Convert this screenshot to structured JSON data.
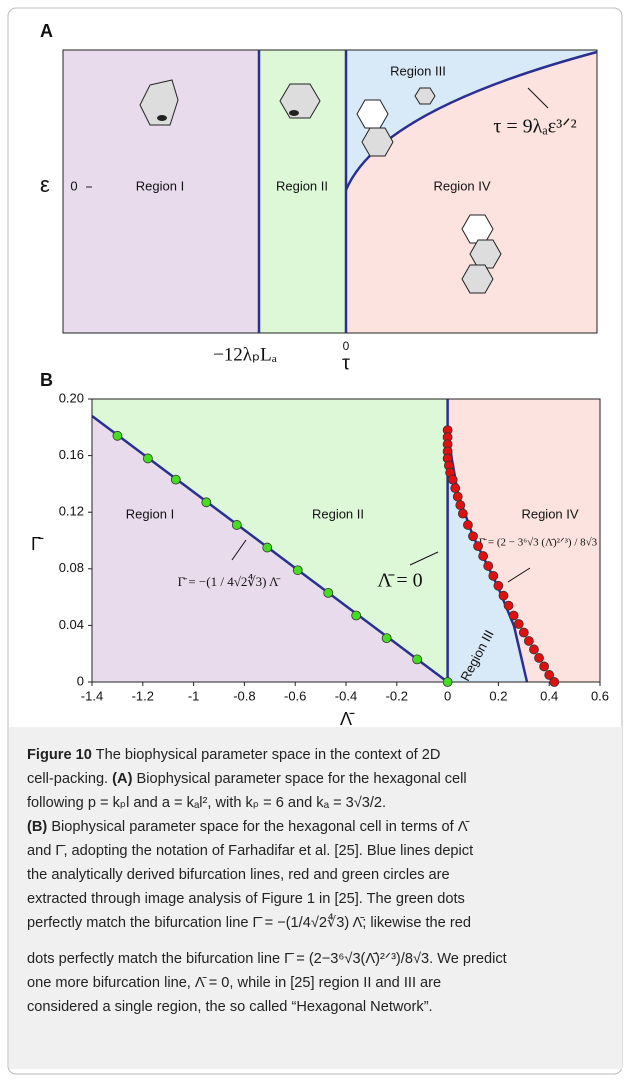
{
  "panel_a": {
    "label": "A",
    "regions": [
      "Region I",
      "Region II",
      "Region III",
      "Region IV"
    ],
    "y_axis_label": "ε",
    "y_tick": "0",
    "x_left_label": "−12λₚLₐ",
    "x_tick": "0",
    "x_axis_label": "τ",
    "formula": "τ = 9λₐε³ᐟ²"
  },
  "chart_data": {
    "type": "scatter",
    "label": "B",
    "xlabel": "Λ̄",
    "ylabel": "Γ̄",
    "xlim": [
      -1.4,
      0.6
    ],
    "ylim": [
      0,
      0.2
    ],
    "xticks": [
      -1.4,
      -1.2,
      -1,
      -0.8,
      -0.6,
      -0.4,
      -0.2,
      0,
      0.2,
      0.4,
      0.6
    ],
    "yticks": [
      0,
      0.04,
      0.08,
      0.12,
      0.16,
      {
        "value": 0.2,
        "label": "0.20"
      }
    ],
    "series": [
      {
        "color": "#44dd22",
        "x": [
          -1.3,
          -1.18,
          -1.07,
          -0.95,
          -0.83,
          -0.71,
          -0.59,
          -0.47,
          -0.36,
          -0.24,
          -0.12,
          0
        ],
        "values": [
          0.174,
          0.158,
          0.143,
          0.127,
          0.111,
          0.095,
          0.079,
          0.063,
          0.047,
          0.031,
          0.016,
          0
        ]
      },
      {
        "color": "#e01010",
        "x": [
          0,
          0,
          0,
          0,
          0,
          0.005,
          0.01,
          0.02,
          0.03,
          0.04,
          0.05,
          0.06,
          0.08,
          0.1,
          0.12,
          0.14,
          0.16,
          0.18,
          0.2,
          0.22,
          0.24,
          0.26,
          0.28,
          0.3,
          0.32,
          0.34,
          0.36,
          0.38,
          0.4,
          0.42
        ],
        "values": [
          0.178,
          0.173,
          0.168,
          0.163,
          0.158,
          0.153,
          0.148,
          0.143,
          0.137,
          0.131,
          0.125,
          0.119,
          0.111,
          0.103,
          0.096,
          0.089,
          0.082,
          0.075,
          0.068,
          0.061,
          0.054,
          0.047,
          0.041,
          0.035,
          0.029,
          0.023,
          0.017,
          0.011,
          0.005,
          0
        ]
      }
    ],
    "annotations": [
      "Region I",
      "Region II",
      "Region III",
      "Region IV",
      "Γ̄ = −(1 / 4√2∜3) Λ̄",
      "Λ̄ = 0",
      "Γ̄ = (2 − 3⁶√3 (Λ̄)²ᐟ³) / 8√3"
    ]
  },
  "caption": {
    "lines": [
      [
        "Figure 10",
        " The biophysical parameter space in the context of 2D"
      ],
      [
        "cell-packing. ",
        "(A)",
        " Biophysical parameter space for the hexagonal cell"
      ],
      [
        "following p = kₚl and a = kₐl², with kₚ = 6 and kₐ = 3√3/2."
      ],
      [
        "(B)",
        " Biophysical parameter space for the hexagonal cell in terms of Λ̄"
      ],
      [
        "and Γ̄, adopting the notation of Farhadifar et al. [25]. Blue lines depict"
      ],
      [
        "the analytically derived bifurcation lines, red and green circles are"
      ],
      [
        "extracted through image analysis of Figure 1 in [25]. The green dots"
      ],
      [
        "perfectly match the bifurcation line Γ̄ = −(1/4√2∜3) Λ̄; likewise the red"
      ],
      [
        "dots perfectly match the bifurcation line Γ̄ = (2−3⁶√3(Λ̄)²ᐟ³)/8√3. We predict"
      ],
      [
        "one more bifurcation line, Λ̄ = 0, while in [25] region II and III are"
      ],
      [
        "considered a single region, the so called “Hexagonal Network”."
      ]
    ]
  }
}
